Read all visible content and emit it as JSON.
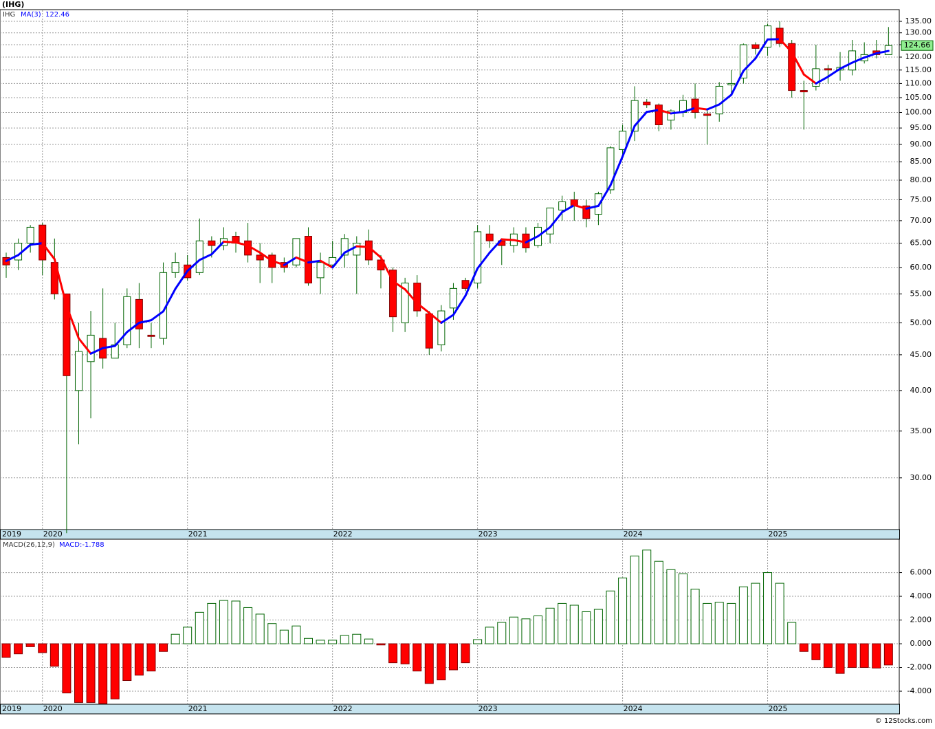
{
  "chart_data": [
    {
      "type": "candlestick",
      "title": "(IHG)",
      "symbol": "IHG",
      "log": true,
      "grid": true,
      "up_color": "#006400",
      "down_color": "#ff0000",
      "last_price_color": "#90ee90",
      "categories": [
        "2019",
        null,
        null,
        "2020",
        null,
        null,
        null,
        null,
        null,
        null,
        null,
        null,
        null,
        null,
        null,
        "2021",
        null,
        null,
        null,
        null,
        null,
        null,
        null,
        null,
        null,
        null,
        null,
        "2022",
        null,
        null,
        null,
        null,
        null,
        null,
        null,
        null,
        null,
        null,
        null,
        "2023",
        null,
        null,
        null,
        null,
        null,
        null,
        null,
        null,
        null,
        null,
        null,
        "2024",
        null,
        null,
        null,
        null,
        null,
        null,
        null,
        null,
        null,
        null,
        null,
        "2025",
        null,
        null,
        null,
        null,
        null,
        null,
        null,
        null,
        null,
        null
      ],
      "open": [
        62,
        61.5,
        65,
        69,
        61,
        55,
        40,
        44,
        47.5,
        44.5,
        46.5,
        54,
        48,
        47.5,
        59,
        60.5,
        59,
        65.5,
        64.5,
        66.5,
        65.5,
        62.5,
        62.5,
        61,
        60.5,
        66.5,
        58,
        60.5,
        62.5,
        62.5,
        65.5,
        61.5,
        59.5,
        50,
        57,
        51.5,
        46.5,
        52.5,
        57.5,
        57,
        67,
        65.5,
        64.5,
        67,
        64.5,
        67,
        72.5,
        75,
        73.5,
        71.5,
        77.5,
        88.5,
        94,
        103.5,
        102.5,
        97.5,
        100,
        104.5,
        99.5,
        99.5,
        109.5,
        112,
        125,
        124,
        132,
        125.5,
        107.5,
        109,
        115.5,
        115,
        115,
        118.5,
        122.5,
        121
      ],
      "high": [
        63,
        66,
        69,
        69.5,
        66,
        55,
        50,
        52,
        56,
        50,
        56,
        57,
        50,
        61,
        63,
        62.5,
        70.5,
        66.5,
        68.5,
        67.5,
        69.5,
        65,
        63,
        62,
        66,
        68.5,
        63,
        65.5,
        67,
        66.5,
        68,
        62.5,
        60,
        58,
        58.5,
        52,
        53,
        57,
        58,
        69,
        69,
        66,
        68.5,
        68.5,
        69.5,
        73,
        76,
        77,
        75,
        77,
        89.5,
        96,
        109,
        104.5,
        103,
        101,
        106,
        110,
        101,
        110.5,
        115,
        125.5,
        126,
        134,
        135,
        127,
        111,
        125,
        117,
        122,
        127,
        126,
        127,
        132.5
      ],
      "low": [
        58,
        59.5,
        63,
        58.5,
        54,
        25,
        33.5,
        36.5,
        43,
        44.5,
        46,
        46,
        46,
        46.5,
        58,
        57.5,
        58.5,
        62,
        63.5,
        63,
        61,
        57,
        57,
        59,
        60,
        56.5,
        55,
        60,
        60,
        55,
        60.5,
        56,
        48.5,
        48.5,
        51,
        45,
        45.5,
        50.5,
        55.5,
        56,
        64,
        60.5,
        63,
        63,
        64,
        65,
        70,
        70,
        68.5,
        69,
        76.5,
        87,
        91,
        101.5,
        94,
        94.5,
        98.5,
        98,
        90,
        97,
        106,
        110,
        121,
        120.5,
        124,
        105,
        94.5,
        107.5,
        110,
        111,
        113,
        117.5,
        119.5,
        121
      ],
      "close": [
        60.5,
        65,
        68.5,
        61.5,
        55,
        42,
        45.5,
        48,
        44.5,
        46.5,
        54.5,
        49,
        47.8,
        59,
        61,
        58,
        65.5,
        64.5,
        66,
        65,
        62.5,
        61.5,
        60,
        60,
        66,
        57,
        61,
        62,
        66,
        65,
        61.5,
        59.5,
        51,
        57,
        52,
        46,
        52,
        56,
        56,
        67.5,
        65.5,
        64.5,
        67,
        64,
        68.5,
        73,
        74.5,
        73.5,
        70.5,
        76.5,
        89,
        94,
        104,
        102.5,
        96,
        100.5,
        104,
        100,
        99,
        109,
        110,
        125,
        123.5,
        133,
        125.5,
        107.5,
        107,
        115.5,
        115,
        116,
        122.5,
        121,
        121,
        124.66
      ],
      "ma": {
        "name": "MA(3)",
        "up_color": "#0000ff",
        "down_color": "#ff0000",
        "values": [
          61.3,
          62.5,
          64.67,
          65,
          61.67,
          52.83,
          47.5,
          45.17,
          46,
          46.33,
          48.5,
          50,
          50.43,
          51.93,
          55.93,
          59.33,
          61.5,
          62.67,
          65.33,
          65.17,
          64.5,
          63,
          61.33,
          60.5,
          62,
          61,
          61.33,
          60,
          63,
          64.33,
          64.17,
          62,
          57.33,
          55.83,
          53.33,
          51.67,
          50,
          51.33,
          54.67,
          59.83,
          63,
          65.83,
          65.67,
          65.17,
          66.5,
          68.5,
          72,
          73.67,
          72.83,
          73.5,
          78.67,
          86.5,
          95.67,
          100.17,
          100.83,
          99.67,
          100.17,
          101.5,
          101,
          102.67,
          106,
          114.67,
          119.5,
          127.17,
          127.33,
          122,
          113.33,
          110,
          112.5,
          115.5,
          117.83,
          119.83,
          121.5,
          122.46
        ]
      },
      "ylim": [
        25.3,
        140
      ],
      "yticks": [
        {
          "value": 135,
          "label": "135.00"
        },
        {
          "value": 130,
          "label": "130.00"
        },
        {
          "value": 125,
          "label": "125.00"
        },
        {
          "value": 120,
          "label": "120.00"
        },
        {
          "value": 115,
          "label": "115.00"
        },
        {
          "value": 110,
          "label": "110.00"
        },
        {
          "value": 105,
          "label": "105.00"
        },
        {
          "value": 100,
          "label": "100.00"
        },
        {
          "value": 95,
          "label": "95.00"
        },
        {
          "value": 90,
          "label": "90.00"
        },
        {
          "value": 85,
          "label": "85.00"
        },
        {
          "value": 80,
          "label": "80.00"
        },
        {
          "value": 75,
          "label": "75.00"
        },
        {
          "value": 70,
          "label": "70.00"
        },
        {
          "value": 65,
          "label": "65.00"
        },
        {
          "value": 60,
          "label": "60.00"
        },
        {
          "value": 55,
          "label": "55.00"
        },
        {
          "value": 50,
          "label": "50.00"
        },
        {
          "value": 45,
          "label": "45.00"
        },
        {
          "value": 40,
          "label": "40.00"
        },
        {
          "value": 35,
          "label": "35.00"
        },
        {
          "value": 30,
          "label": "30.00"
        }
      ]
    },
    {
      "type": "bar",
      "title": "MACD(26,12,9)",
      "subtitle": "MACD:-1.788",
      "grid": true,
      "up_color": "#006400",
      "down_color": "#ff0000",
      "categories": [
        "2019",
        null,
        null,
        "2020",
        null,
        null,
        null,
        null,
        null,
        null,
        null,
        null,
        null,
        null,
        null,
        "2021",
        null,
        null,
        null,
        null,
        null,
        null,
        null,
        null,
        null,
        null,
        null,
        "2022",
        null,
        null,
        null,
        null,
        null,
        null,
        null,
        null,
        null,
        null,
        null,
        "2023",
        null,
        null,
        null,
        null,
        null,
        null,
        null,
        null,
        null,
        null,
        null,
        "2024",
        null,
        null,
        null,
        null,
        null,
        null,
        null,
        null,
        null,
        null,
        null,
        "2025",
        null,
        null,
        null,
        null,
        null,
        null,
        null,
        null,
        null,
        null
      ],
      "values": [
        -1.15,
        -0.85,
        -0.25,
        -0.75,
        -1.9,
        -4.15,
        -4.95,
        -4.95,
        -5.05,
        -4.65,
        -3.1,
        -2.65,
        -2.3,
        -0.65,
        0.8,
        1.4,
        2.65,
        3.4,
        3.65,
        3.6,
        3.05,
        2.5,
        1.7,
        1.15,
        1.5,
        0.45,
        0.3,
        0.3,
        0.7,
        0.8,
        0.4,
        -0.1,
        -1.6,
        -1.7,
        -2.3,
        -3.35,
        -3.05,
        -2.2,
        -1.6,
        0.35,
        1.4,
        1.8,
        2.25,
        2.1,
        2.35,
        3,
        3.4,
        3.25,
        2.7,
        2.9,
        4.45,
        5.55,
        7.4,
        7.9,
        6.95,
        6.25,
        5.9,
        4.6,
        3.4,
        3.5,
        3.4,
        4.8,
        5.1,
        6,
        5.1,
        1.8,
        -0.65,
        -1.35,
        -2,
        -2.5,
        -2,
        -2,
        -2.05,
        -1.788
      ],
      "ylim": [
        -5.1,
        8.7
      ],
      "yticks": [
        {
          "value": 6,
          "label": "6.000"
        },
        {
          "value": 4,
          "label": "4.000"
        },
        {
          "value": 2,
          "label": "2.000"
        },
        {
          "value": 0,
          "label": "0.000"
        },
        {
          "value": -2,
          "label": "-2.000"
        },
        {
          "value": -4,
          "label": "-4.000"
        }
      ]
    }
  ],
  "footer": "© 12Stocks.com"
}
